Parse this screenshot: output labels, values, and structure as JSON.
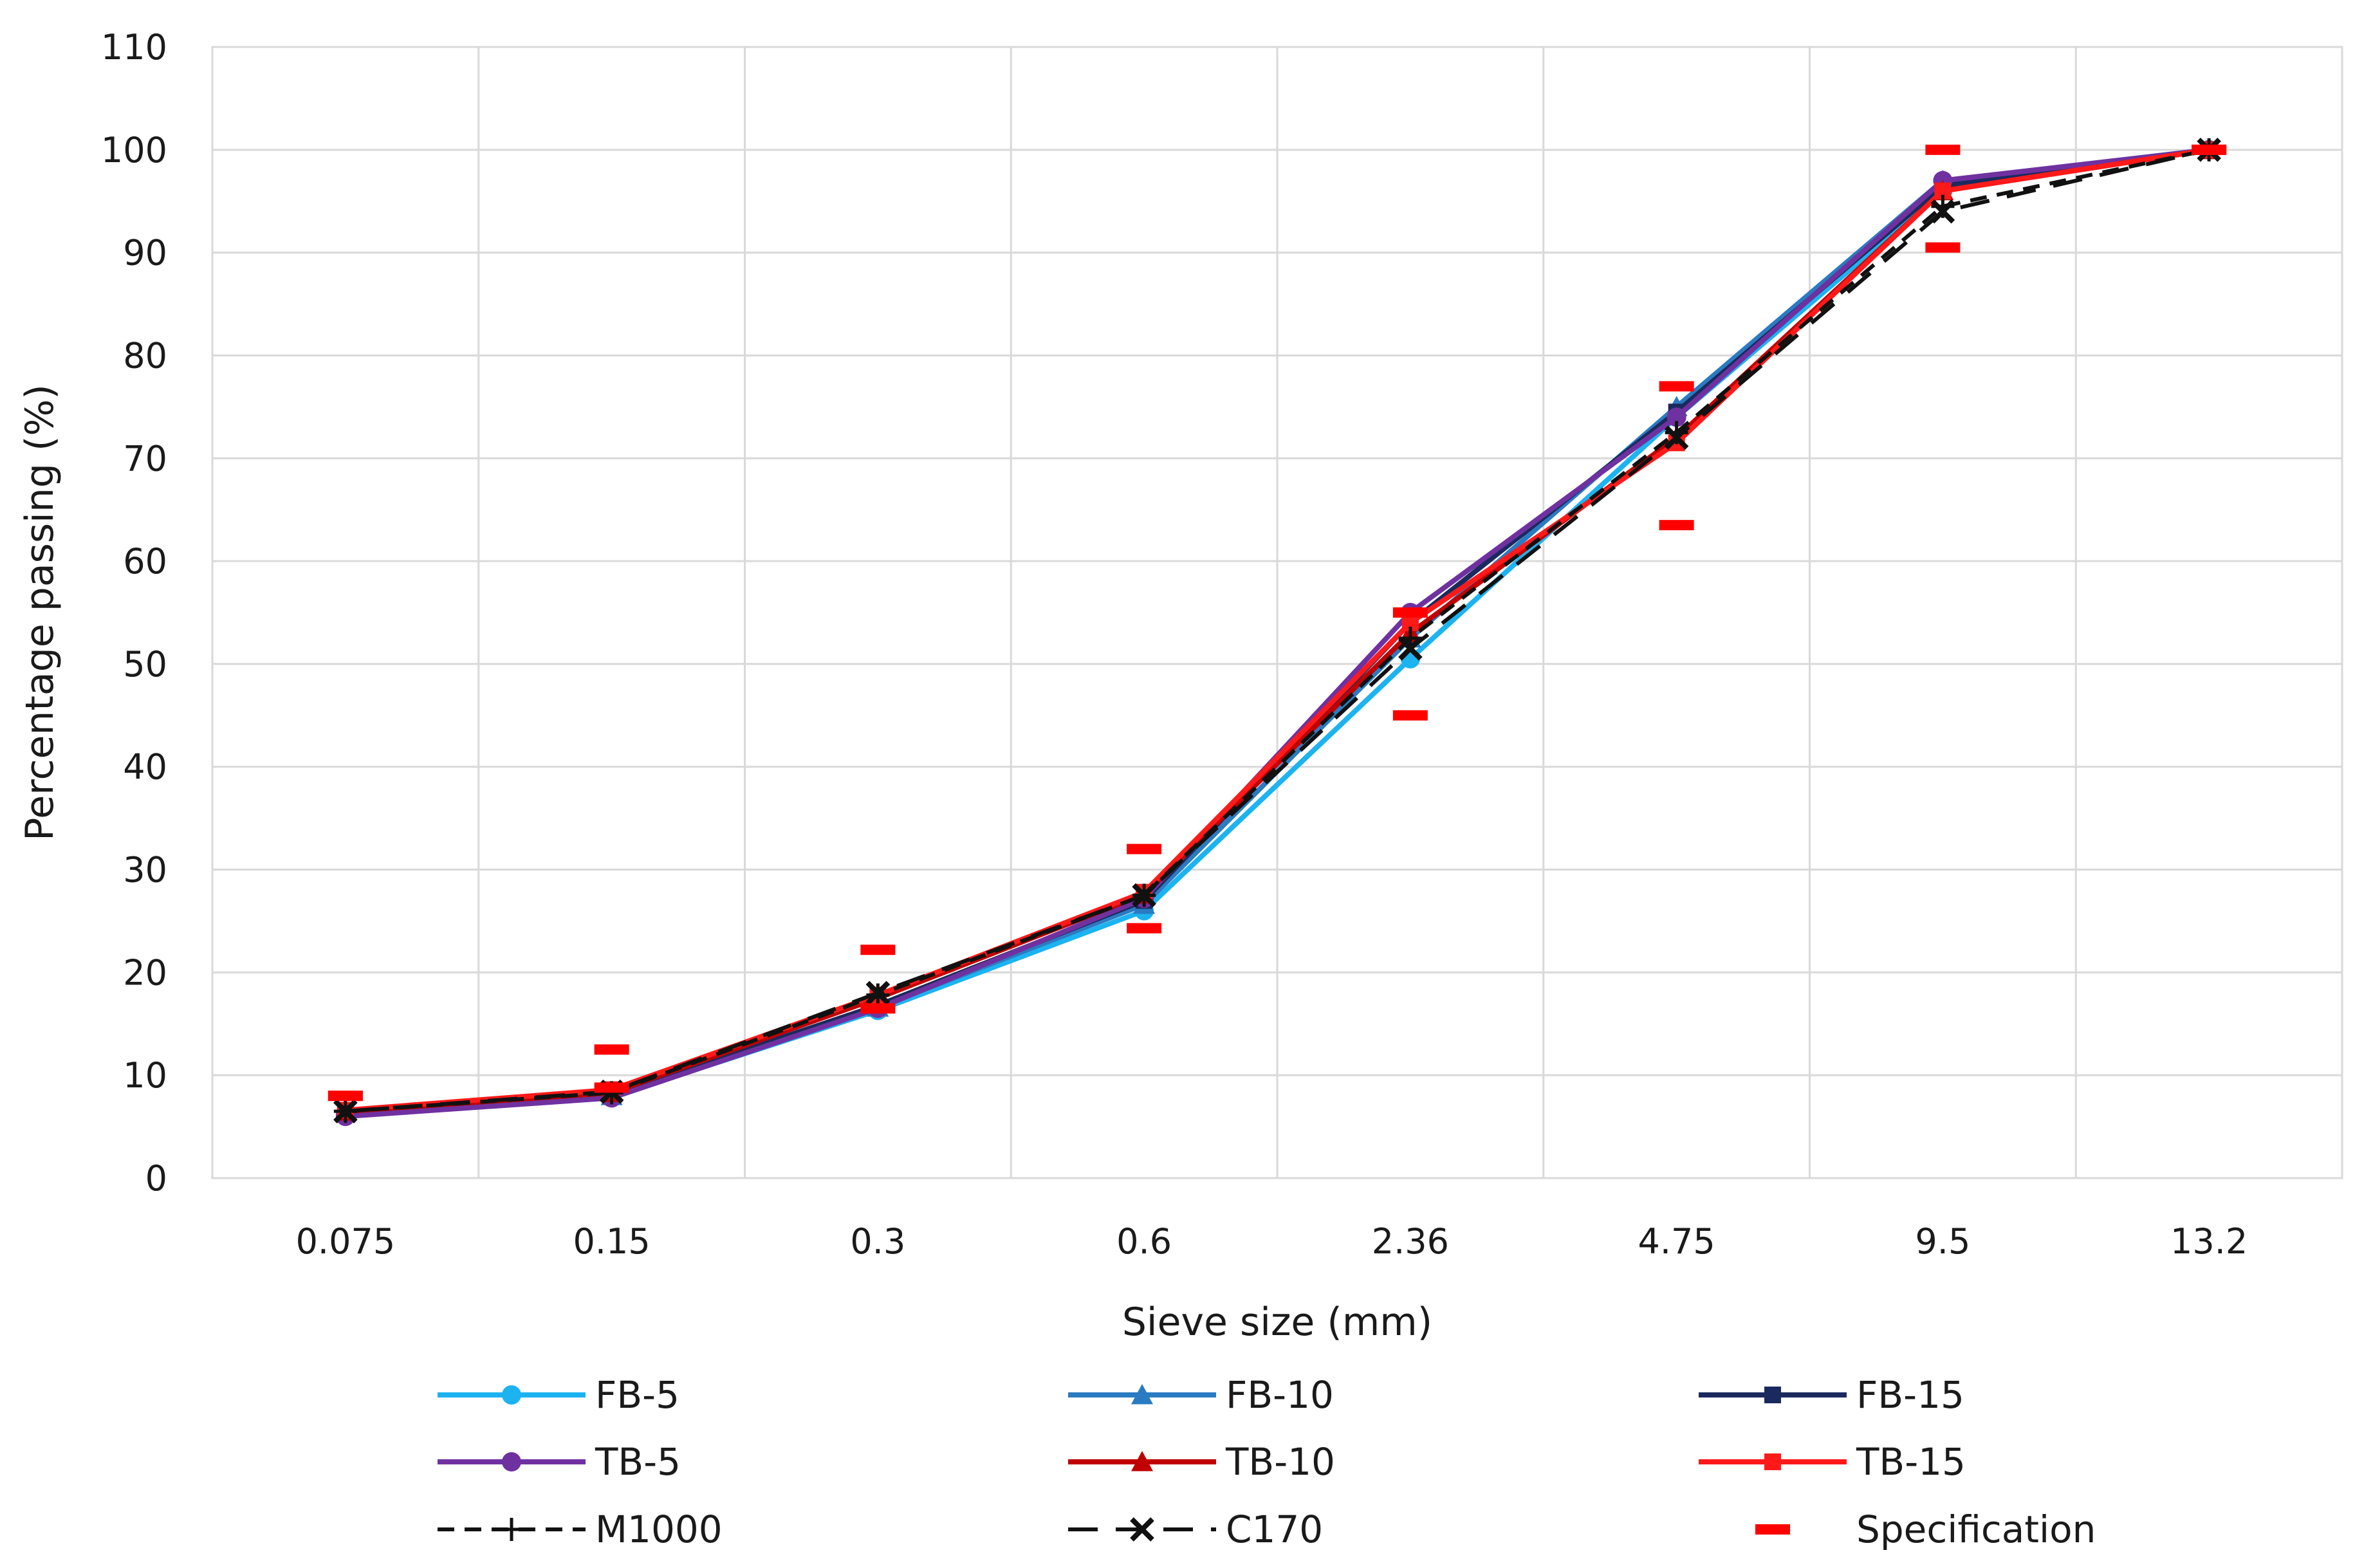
{
  "chart_data": {
    "type": "line",
    "xlabel": "Sieve size (mm)",
    "ylabel": "Percentage passing (%)",
    "categories": [
      "0.075",
      "0.15",
      "0.3",
      "0.6",
      "2.36",
      "4.75",
      "9.5",
      "13.2"
    ],
    "ylim": [
      0,
      110
    ],
    "yticks": [
      0,
      10,
      20,
      30,
      40,
      50,
      60,
      70,
      80,
      90,
      100,
      110
    ],
    "grid": true,
    "legend_position": "bottom",
    "series": [
      {
        "name": "FB-5",
        "color": "#1cb3f0",
        "marker": "circle",
        "line": "solid",
        "values": [
          6.2,
          7.9,
          16.3,
          26.0,
          50.5,
          74.0,
          96.0,
          100
        ]
      },
      {
        "name": "FB-10",
        "color": "#2a7bc2",
        "marker": "triangle",
        "line": "solid",
        "values": [
          6.4,
          8.0,
          16.6,
          26.6,
          52.5,
          75.0,
          97.0,
          100
        ]
      },
      {
        "name": "FB-15",
        "color": "#1b2a5e",
        "marker": "square",
        "line": "solid",
        "values": [
          6.3,
          8.1,
          16.8,
          27.0,
          54.0,
          74.5,
          96.5,
          100
        ]
      },
      {
        "name": "TB-5",
        "color": "#7031a0",
        "marker": "circle",
        "line": "solid",
        "values": [
          6.0,
          7.8,
          16.5,
          27.2,
          55.0,
          74.0,
          97.0,
          100
        ]
      },
      {
        "name": "TB-10",
        "color": "#c00000",
        "marker": "triangle",
        "line": "solid",
        "values": [
          6.5,
          8.3,
          17.5,
          27.6,
          53.0,
          72.0,
          96.0,
          100
        ]
      },
      {
        "name": "TB-15",
        "color": "#ff1a1a",
        "marker": "square",
        "line": "solid",
        "values": [
          6.6,
          8.6,
          17.8,
          27.8,
          54.0,
          71.5,
          96.0,
          100
        ]
      },
      {
        "name": "M1000",
        "color": "#111111",
        "marker": "plus",
        "line": "dashed",
        "values": [
          6.5,
          8.3,
          17.8,
          27.5,
          52.5,
          72.5,
          94.5,
          100
        ]
      },
      {
        "name": "C170",
        "color": "#111111",
        "marker": "x",
        "line": "longdash",
        "values": [
          6.5,
          8.4,
          18.0,
          27.5,
          51.5,
          72.0,
          94.0,
          100
        ]
      }
    ],
    "specification": {
      "name": "Specification",
      "color": "#ff0000",
      "upper": [
        8,
        12.5,
        22.2,
        32,
        55,
        77,
        100,
        100
      ],
      "lower": [
        8,
        8.8,
        16.5,
        24.3,
        45,
        63.5,
        90.5,
        100
      ]
    }
  }
}
